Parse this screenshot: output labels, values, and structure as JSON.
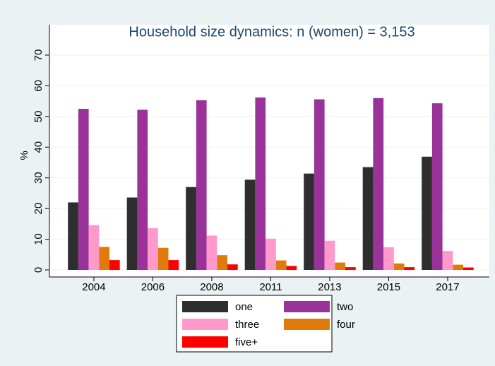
{
  "chart_data": {
    "type": "bar",
    "title": "Household size dynamics: n (women) = 3,153",
    "ylabel": "%",
    "categories": [
      "2004",
      "2006",
      "2008",
      "2011",
      "2013",
      "2015",
      "2017"
    ],
    "series": [
      {
        "name": "one",
        "color": "#2e2e2e",
        "values": [
          22,
          23.6,
          27,
          29.4,
          31.4,
          33.5,
          36.9
        ]
      },
      {
        "name": "two",
        "color": "#993399",
        "values": [
          52.5,
          52.2,
          55.3,
          56.2,
          55.6,
          56,
          54.3
        ]
      },
      {
        "name": "three",
        "color": "#ff99cc",
        "values": [
          14.6,
          13.6,
          11.2,
          10.2,
          9.5,
          7.4,
          6.2
        ]
      },
      {
        "name": "four",
        "color": "#e07b0b",
        "values": [
          7.5,
          7.2,
          4.8,
          3.1,
          2.4,
          2.1,
          1.7
        ]
      },
      {
        "name": "five+",
        "color": "#ff0000",
        "values": [
          3.2,
          3.2,
          1.8,
          1.3,
          0.9,
          0.9,
          0.8
        ]
      }
    ],
    "ylim": [
      0,
      70
    ],
    "yticks": [
      0,
      10,
      20,
      30,
      40,
      50,
      60,
      70
    ],
    "grid": true
  }
}
